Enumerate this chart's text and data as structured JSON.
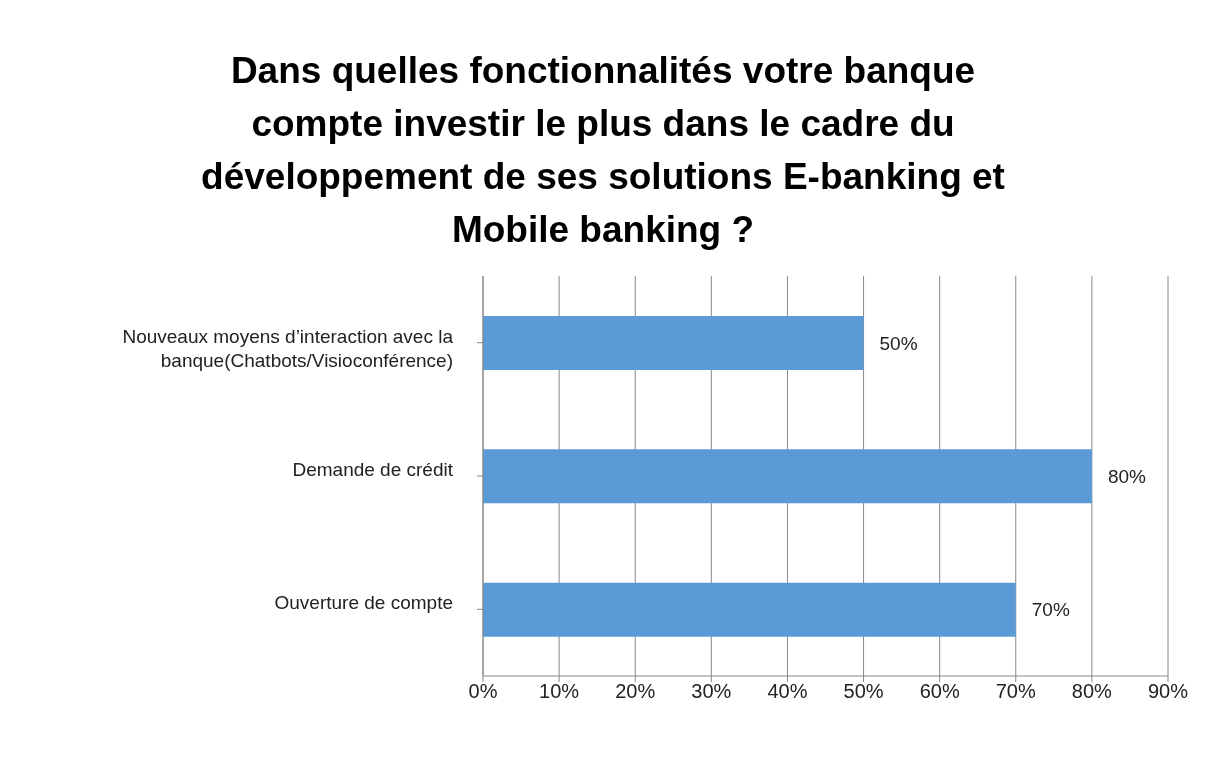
{
  "chart_data": {
    "type": "bar",
    "orientation": "horizontal",
    "title": "Dans quelles fonctionnalités votre banque compte investir le plus dans le cadre du développement de ses solutions E-banking et Mobile banking ?",
    "categories": [
      "Nouveaux moyens d’interaction avec la banque(Chatbots/Visioconférence)",
      "Demande de crédit",
      "Ouverture de compte"
    ],
    "values": [
      50,
      80,
      70
    ],
    "color": "#5b9bd5",
    "value_labels": [
      "50%",
      "80%",
      "70%"
    ],
    "xlim": [
      0,
      90
    ],
    "xticks": [
      {
        "value": 0,
        "label": "0%"
      },
      {
        "value": 10,
        "label": "10%"
      },
      {
        "value": 20,
        "label": "20%"
      },
      {
        "value": 30,
        "label": "30%"
      },
      {
        "value": 40,
        "label": "40%"
      },
      {
        "value": 50,
        "label": "50%"
      },
      {
        "value": 60,
        "label": "60%"
      },
      {
        "value": 70,
        "label": "70%"
      },
      {
        "value": 80,
        "label": "80%"
      },
      {
        "value": 90,
        "label": "90%"
      }
    ],
    "grid": "x"
  }
}
